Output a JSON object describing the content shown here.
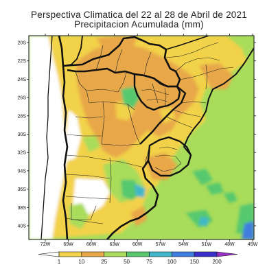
{
  "title": {
    "line1": "Perspectiva Climatica del 22 al 28 de Abril de 2021",
    "line2": "Precipitacion Acumulada (mm)"
  },
  "map": {
    "lat_ticks": [
      "20S",
      "22S",
      "24S",
      "26S",
      "28S",
      "30S",
      "32S",
      "34S",
      "36S",
      "38S",
      "40S"
    ],
    "lon_ticks": [
      "72W",
      "69W",
      "66W",
      "63W",
      "60W",
      "57W",
      "54W",
      "51W",
      "48W",
      "45W"
    ],
    "lat_range": [
      -41.5,
      -19
    ],
    "lon_range": [
      -74,
      -45
    ]
  },
  "colorbar": {
    "levels": [
      "1",
      "10",
      "25",
      "50",
      "75",
      "100",
      "150",
      "200"
    ],
    "colors": [
      "#ffffff",
      "#f2d24a",
      "#e8a84a",
      "#a8dc5a",
      "#56c86e",
      "#3fb7c9",
      "#3f7ee0",
      "#3a2fc8",
      "#9a2fc8"
    ]
  }
}
